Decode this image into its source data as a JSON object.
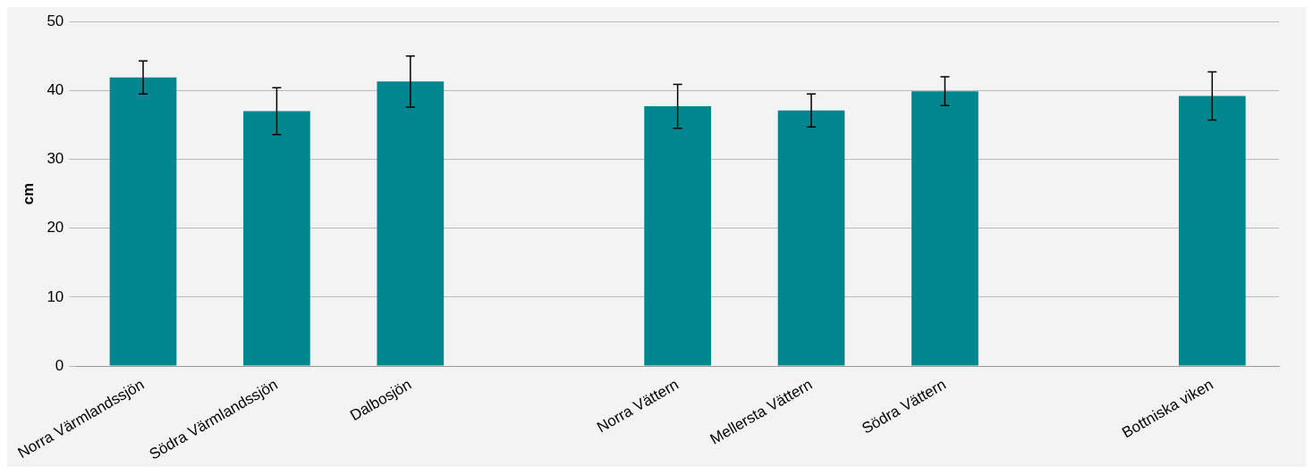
{
  "chart_data": {
    "type": "bar",
    "ylabel": "cm",
    "categories": [
      "Norra Värmlandssjön",
      "Södra Värmlandssjön",
      "Dalbosjön",
      null,
      "Norra Vättern",
      "Mellersta Vättern",
      "Södra Vättern",
      null,
      "Bottniska viken"
    ],
    "values": [
      41.9,
      37.0,
      41.3,
      null,
      37.7,
      37.1,
      39.9,
      null,
      39.2
    ],
    "errors": [
      2.4,
      3.4,
      3.7,
      null,
      3.2,
      2.4,
      2.1,
      null,
      3.5
    ],
    "color": "#00868f",
    "ylim": [
      0,
      50
    ],
    "yticks": [
      0,
      10,
      20,
      30,
      40,
      50
    ],
    "grid": "y",
    "legend": false
  }
}
